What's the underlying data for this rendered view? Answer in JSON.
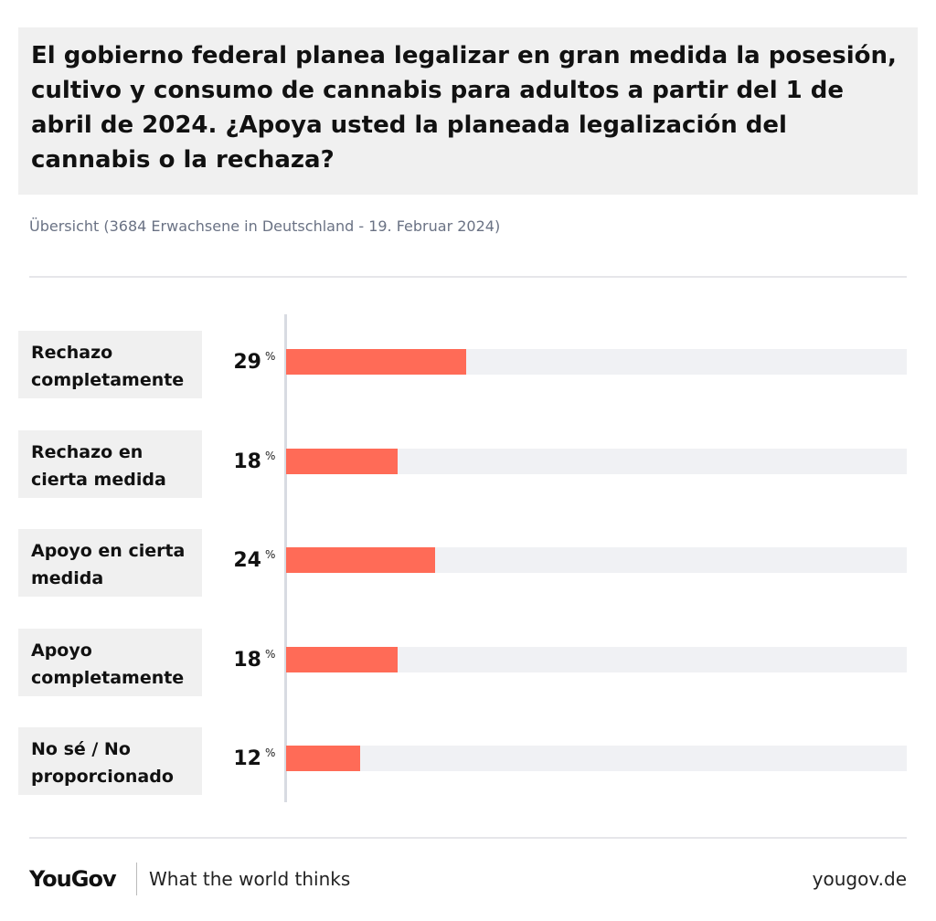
{
  "header": {
    "title": "El gobierno federal planea legalizar en gran medida la posesión, cultivo y consumo de cannabis para adultos a partir del 1 de abril de 2024. ¿Apoya usted la planeada legalización del cannabis o la rechaza?",
    "subtitle": "Übersicht (3684 Erwachsene in Deutschland - 19. Februar 2024)"
  },
  "footer": {
    "logo": "YouGov",
    "tagline": "What the world thinks",
    "url": "yougov.de"
  },
  "colors": {
    "bar": "#ff6b57",
    "track": "#f0f1f4"
  },
  "chart_data": {
    "type": "bar",
    "orientation": "horizontal",
    "categories": [
      "Rechazo completamente",
      "Rechazo en cierta medida",
      "Apoyo en cierta medida",
      "Apoyo completamente",
      "No sé / No proporcionado"
    ],
    "values": [
      29,
      18,
      24,
      18,
      12
    ],
    "unit": "%",
    "xlim": [
      0,
      100
    ],
    "grid": false,
    "legend": "none"
  }
}
